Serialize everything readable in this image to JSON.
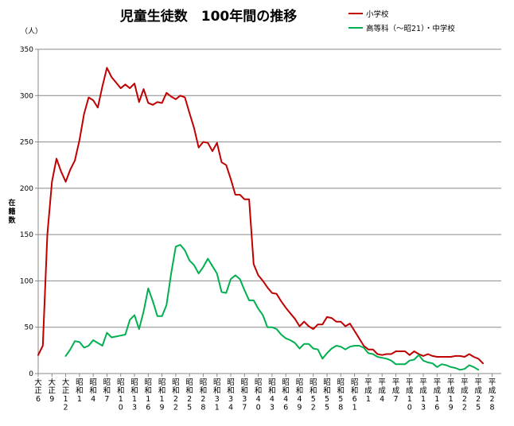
{
  "chart_data": {
    "type": "line",
    "title": "児童生徒数　100年間の推移",
    "unit_label": "（人）",
    "ylabel": "在籍数",
    "ylim": [
      0,
      350
    ],
    "yticks": [
      0,
      50,
      100,
      150,
      200,
      250,
      300,
      350
    ],
    "grid": true,
    "legend_position": "top-right",
    "x_range": [
      6,
      139
    ],
    "category_labels": [
      {
        "x": 6,
        "text": "大正6"
      },
      {
        "x": 9,
        "text": "大正9"
      },
      {
        "x": 12,
        "text": "大正12"
      },
      {
        "x": 15,
        "text": "昭和1"
      },
      {
        "x": 18,
        "text": "昭和4"
      },
      {
        "x": 21,
        "text": "昭和7"
      },
      {
        "x": 24,
        "text": "昭和10"
      },
      {
        "x": 27,
        "text": "昭和13"
      },
      {
        "x": 30,
        "text": "昭和16"
      },
      {
        "x": 33,
        "text": "昭和19"
      },
      {
        "x": 36,
        "text": "昭和22"
      },
      {
        "x": 39,
        "text": "昭和25"
      },
      {
        "x": 42,
        "text": "昭和28"
      },
      {
        "x": 45,
        "text": "昭和31"
      },
      {
        "x": 48,
        "text": "昭和34"
      },
      {
        "x": 51,
        "text": "昭和37"
      },
      {
        "x": 54,
        "text": "昭和40"
      },
      {
        "x": 57,
        "text": "昭和43"
      },
      {
        "x": 60,
        "text": "昭和46"
      },
      {
        "x": 63,
        "text": "昭和49"
      },
      {
        "x": 66,
        "text": "昭和52"
      },
      {
        "x": 69,
        "text": "昭和55"
      },
      {
        "x": 72,
        "text": "昭和58"
      },
      {
        "x": 75,
        "text": "昭和61"
      },
      {
        "x": 78,
        "text": "平成1"
      },
      {
        "x": 81,
        "text": "平成4"
      },
      {
        "x": 84,
        "text": "平成7"
      },
      {
        "x": 87,
        "text": "平成10"
      },
      {
        "x": 90,
        "text": "平成13"
      },
      {
        "x": 93,
        "text": "平成16"
      },
      {
        "x": 96,
        "text": "平成19"
      },
      {
        "x": 99,
        "text": "平成22"
      },
      {
        "x": 102,
        "text": "平成25"
      },
      {
        "x": 105,
        "text": "平成28"
      }
    ],
    "series": [
      {
        "name": "小学校",
        "color": "#c00000",
        "points": [
          [
            6,
            20
          ],
          [
            7,
            30
          ],
          [
            8,
            150
          ],
          [
            9,
            207
          ],
          [
            10,
            232
          ],
          [
            11,
            218
          ],
          [
            12,
            207
          ],
          [
            13,
            220
          ],
          [
            14,
            230
          ],
          [
            15,
            252
          ],
          [
            16,
            280
          ],
          [
            17,
            298
          ],
          [
            18,
            295
          ],
          [
            19,
            287
          ],
          [
            20,
            310
          ],
          [
            21,
            330
          ],
          [
            22,
            320
          ],
          [
            23,
            314
          ],
          [
            24,
            308
          ],
          [
            25,
            312
          ],
          [
            26,
            308
          ],
          [
            27,
            313
          ],
          [
            28,
            293
          ],
          [
            29,
            307
          ],
          [
            30,
            292
          ],
          [
            31,
            290
          ],
          [
            32,
            293
          ],
          [
            33,
            292
          ],
          [
            34,
            303
          ],
          [
            35,
            299
          ],
          [
            36,
            296
          ],
          [
            37,
            300
          ],
          [
            38,
            298
          ],
          [
            39,
            281
          ],
          [
            40,
            265
          ],
          [
            41,
            244
          ],
          [
            42,
            250
          ],
          [
            43,
            249
          ],
          [
            44,
            240
          ],
          [
            45,
            249
          ],
          [
            46,
            228
          ],
          [
            47,
            225
          ],
          [
            48,
            210
          ],
          [
            49,
            193
          ],
          [
            50,
            193
          ],
          [
            51,
            188
          ],
          [
            52,
            188
          ],
          [
            53,
            118
          ],
          [
            54,
            106
          ],
          [
            55,
            100
          ],
          [
            56,
            93
          ],
          [
            57,
            87
          ],
          [
            58,
            86
          ],
          [
            59,
            78
          ],
          [
            60,
            71
          ],
          [
            61,
            65
          ],
          [
            62,
            59
          ],
          [
            63,
            51
          ],
          [
            64,
            56
          ],
          [
            65,
            51
          ],
          [
            66,
            48
          ],
          [
            67,
            53
          ],
          [
            68,
            53
          ],
          [
            69,
            61
          ],
          [
            70,
            60
          ],
          [
            71,
            56
          ],
          [
            72,
            56
          ],
          [
            73,
            51
          ],
          [
            74,
            54
          ],
          [
            75,
            46
          ],
          [
            76,
            38
          ],
          [
            77,
            30
          ],
          [
            78,
            26
          ],
          [
            79,
            26
          ],
          [
            80,
            21
          ],
          [
            81,
            20
          ],
          [
            82,
            21
          ],
          [
            83,
            21
          ],
          [
            84,
            24
          ],
          [
            85,
            24
          ],
          [
            86,
            24
          ],
          [
            87,
            20
          ],
          [
            88,
            24
          ],
          [
            89,
            21
          ],
          [
            90,
            19
          ],
          [
            91,
            21
          ],
          [
            92,
            19
          ],
          [
            93,
            18
          ],
          [
            94,
            18
          ],
          [
            95,
            18
          ],
          [
            96,
            18
          ],
          [
            97,
            19
          ],
          [
            98,
            19
          ],
          [
            99,
            18
          ],
          [
            100,
            21
          ],
          [
            101,
            18
          ],
          [
            102,
            16
          ],
          [
            103,
            11
          ]
        ]
      },
      {
        "name": "高等科（～昭21）・中学校",
        "color": "#00b050",
        "points": [
          [
            12,
            19
          ],
          [
            13,
            26
          ],
          [
            14,
            35
          ],
          [
            15,
            34
          ],
          [
            16,
            28
          ],
          [
            17,
            30
          ],
          [
            18,
            36
          ],
          [
            19,
            33
          ],
          [
            20,
            30
          ],
          [
            21,
            44
          ],
          [
            22,
            39
          ],
          [
            23,
            40
          ],
          [
            24,
            41
          ],
          [
            25,
            42
          ],
          [
            26,
            58
          ],
          [
            27,
            63
          ],
          [
            28,
            48
          ],
          [
            29,
            67
          ],
          [
            30,
            92
          ],
          [
            31,
            78
          ],
          [
            32,
            62
          ],
          [
            33,
            62
          ],
          [
            34,
            74
          ],
          [
            35,
            108
          ],
          [
            36,
            137
          ],
          [
            37,
            139
          ],
          [
            38,
            133
          ],
          [
            39,
            122
          ],
          [
            40,
            117
          ],
          [
            41,
            108
          ],
          [
            42,
            115
          ],
          [
            43,
            124
          ],
          [
            44,
            116
          ],
          [
            45,
            108
          ],
          [
            46,
            88
          ],
          [
            47,
            87
          ],
          [
            48,
            102
          ],
          [
            49,
            106
          ],
          [
            50,
            102
          ],
          [
            51,
            90
          ],
          [
            52,
            79
          ],
          [
            53,
            79
          ],
          [
            54,
            70
          ],
          [
            55,
            63
          ],
          [
            56,
            50
          ],
          [
            57,
            50
          ],
          [
            58,
            48
          ],
          [
            59,
            42
          ],
          [
            60,
            38
          ],
          [
            61,
            36
          ],
          [
            62,
            33
          ],
          [
            63,
            27
          ],
          [
            64,
            32
          ],
          [
            65,
            32
          ],
          [
            66,
            27
          ],
          [
            67,
            26
          ],
          [
            68,
            16
          ],
          [
            69,
            22
          ],
          [
            70,
            27
          ],
          [
            71,
            30
          ],
          [
            72,
            29
          ],
          [
            73,
            26
          ],
          [
            74,
            29
          ],
          [
            75,
            30
          ],
          [
            76,
            30
          ],
          [
            77,
            28
          ],
          [
            78,
            22
          ],
          [
            79,
            21
          ],
          [
            80,
            18
          ],
          [
            81,
            17
          ],
          [
            82,
            16
          ],
          [
            83,
            14
          ],
          [
            84,
            10
          ],
          [
            85,
            10
          ],
          [
            86,
            10
          ],
          [
            87,
            14
          ],
          [
            88,
            15
          ],
          [
            89,
            20
          ],
          [
            90,
            14
          ],
          [
            91,
            12
          ],
          [
            92,
            11
          ],
          [
            93,
            7
          ],
          [
            94,
            10
          ],
          [
            95,
            9
          ],
          [
            96,
            7
          ],
          [
            97,
            6
          ],
          [
            98,
            4
          ],
          [
            99,
            5
          ],
          [
            100,
            9
          ],
          [
            101,
            7
          ],
          [
            102,
            4
          ]
        ]
      }
    ]
  }
}
